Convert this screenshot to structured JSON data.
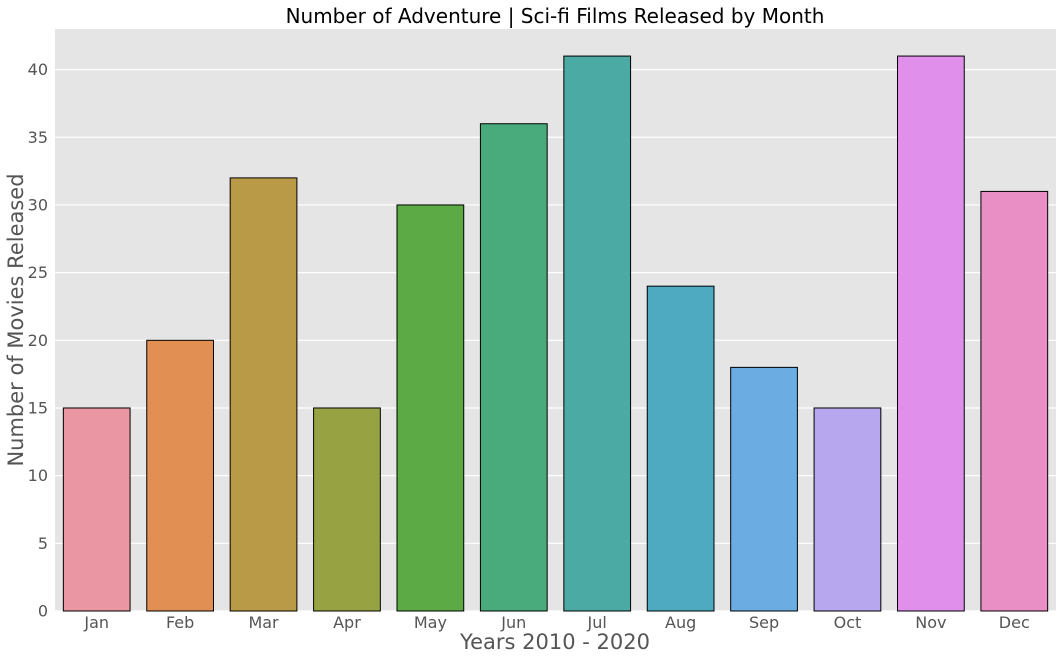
{
  "chart_data": {
    "type": "bar",
    "title": "Number of Adventure | Sci-fi Films Released by Month",
    "xlabel": "Years 2010 - 2020",
    "ylabel": "Number of Movies Released",
    "categories": [
      "Jan",
      "Feb",
      "Mar",
      "Apr",
      "May",
      "Jun",
      "Jul",
      "Aug",
      "Sep",
      "Oct",
      "Nov",
      "Dec"
    ],
    "values": [
      15,
      20,
      32,
      15,
      30,
      36,
      41,
      24,
      18,
      15,
      41,
      31
    ],
    "colors": [
      "#EA96A3",
      "#E28F53",
      "#B99A47",
      "#97A343",
      "#5BAA46",
      "#49AB7C",
      "#4BAAA4",
      "#4DAAC0",
      "#6BACE2",
      "#B6A7EF",
      "#E08FEA",
      "#EA8EC6"
    ],
    "yticks": [
      0,
      5,
      10,
      15,
      20,
      25,
      30,
      35,
      40
    ],
    "ylim": [
      0,
      43
    ],
    "grid": true,
    "background_color": "#E5E5E5",
    "grid_color": "#FFFFFF",
    "bar_edge_color": "#000000"
  }
}
